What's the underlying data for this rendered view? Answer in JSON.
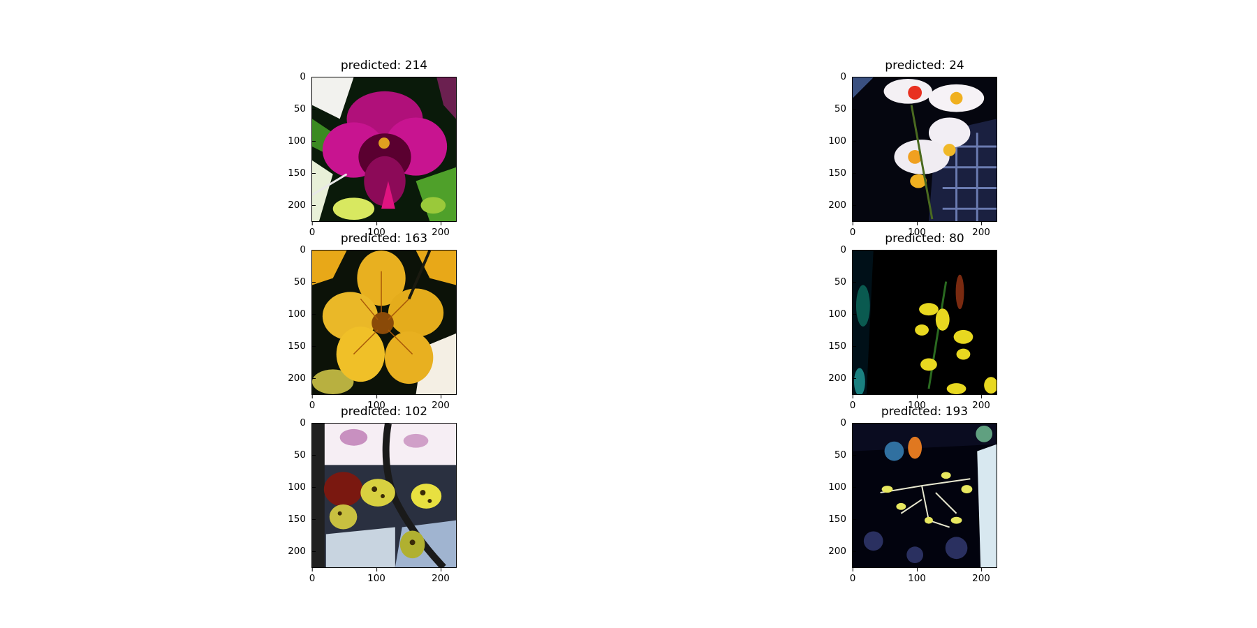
{
  "panels": [
    {
      "title": "predicted: 214",
      "kind": "magenta-orchid"
    },
    {
      "title": "predicted: 24",
      "kind": "white-orchids"
    },
    {
      "title": "predicted: 163",
      "kind": "yellow-orchid"
    },
    {
      "title": "predicted: 80",
      "kind": "dark-yellow-sprays"
    },
    {
      "title": "predicted: 102",
      "kind": "spotted-orchids"
    },
    {
      "title": "predicted: 193",
      "kind": "dark-branches"
    }
  ],
  "axes": {
    "x_ticks": [
      "0",
      "100",
      "200"
    ],
    "y_ticks": [
      "0",
      "50",
      "100",
      "150",
      "200"
    ]
  }
}
